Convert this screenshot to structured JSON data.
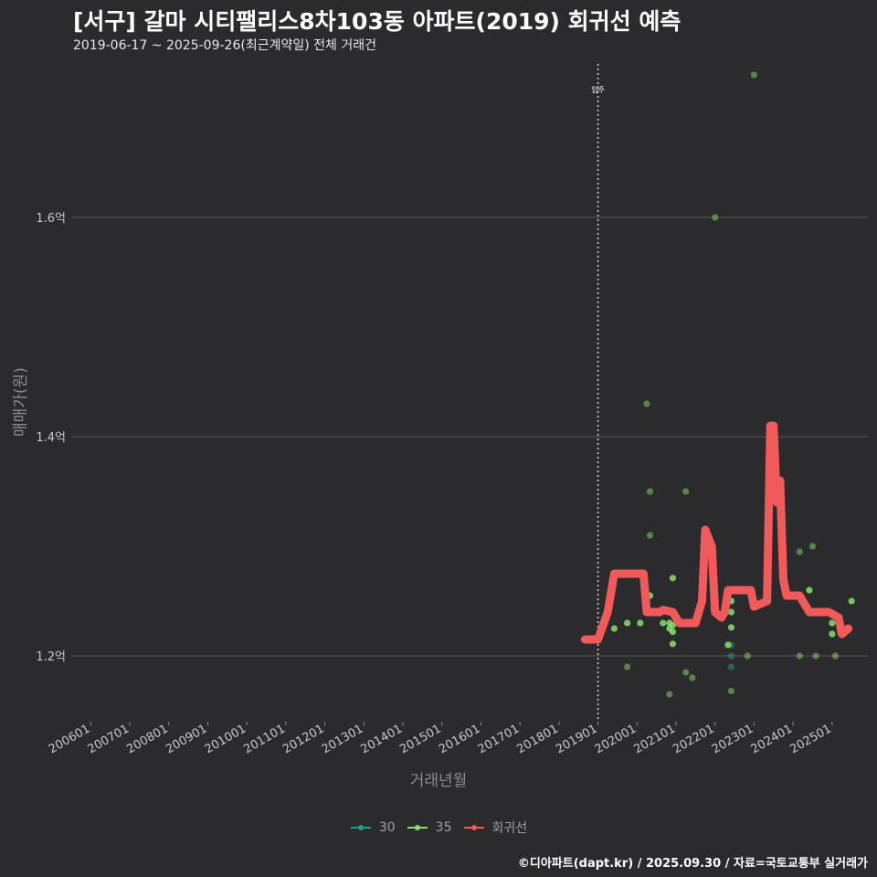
{
  "chart_data": {
    "type": "scatter",
    "title": "[서구] 갈마 시티팰리스8차103동 아파트(2019) 회귀선 예측",
    "subtitle": "2019-06-17 ~ 2025-09-26(최근계약일) 전체 거래건",
    "xlabel": "거래년월",
    "ylabel": "매매가(원)",
    "caption": "©디아파트(dapt.kr) / 2025.09.30 / 자료=국토교통부 실거래가",
    "x_ticks": [
      "200601",
      "200701",
      "200801",
      "200901",
      "201001",
      "201101",
      "201201",
      "201301",
      "201401",
      "201501",
      "201601",
      "201701",
      "201801",
      "201901",
      "202001",
      "202101",
      "202201",
      "202301",
      "202401",
      "202501"
    ],
    "y_ticks": [
      {
        "value": 1.2,
        "label": "1.2억"
      },
      {
        "value": 1.4,
        "label": "1.4억"
      },
      {
        "value": 1.6,
        "label": "1.6억"
      }
    ],
    "xlim": [
      "2005-07",
      "2025-12"
    ],
    "ylim": [
      1.14,
      1.74
    ],
    "grid": "horizontal",
    "legend_position": "bottom",
    "annotations": [
      {
        "x": "2019-01",
        "label": "입주"
      }
    ],
    "legend": [
      {
        "name": "30",
        "color": "#1fa187",
        "kind": "point-line"
      },
      {
        "name": "35",
        "color": "#86e068",
        "kind": "point-line"
      },
      {
        "name": "회귀선",
        "color": "#f05a5a",
        "kind": "point-line"
      }
    ],
    "series": [
      {
        "name": "30",
        "color": "#1fa187",
        "points": [
          {
            "x": "2022-06",
            "y": 1.19
          },
          {
            "x": "2022-06",
            "y": 1.2
          },
          {
            "x": "2022-06",
            "y": 1.21
          }
        ]
      },
      {
        "name": "35",
        "color": "#86e068",
        "points": [
          {
            "x": "2019-06",
            "y": 1.225
          },
          {
            "x": "2019-10",
            "y": 1.19
          },
          {
            "x": "2019-10",
            "y": 1.23
          },
          {
            "x": "2020-02",
            "y": 1.23
          },
          {
            "x": "2020-04",
            "y": 1.43
          },
          {
            "x": "2020-05",
            "y": 1.35
          },
          {
            "x": "2020-05",
            "y": 1.31
          },
          {
            "x": "2020-05",
            "y": 1.255
          },
          {
            "x": "2020-09",
            "y": 1.23
          },
          {
            "x": "2020-11",
            "y": 1.23
          },
          {
            "x": "2020-11",
            "y": 1.225
          },
          {
            "x": "2020-12",
            "y": 1.271
          },
          {
            "x": "2020-12",
            "y": 1.228
          },
          {
            "x": "2020-12",
            "y": 1.222
          },
          {
            "x": "2020-12",
            "y": 1.211
          },
          {
            "x": "2020-11",
            "y": 1.165
          },
          {
            "x": "2021-04",
            "y": 1.35
          },
          {
            "x": "2021-04",
            "y": 1.185
          },
          {
            "x": "2021-06",
            "y": 1.18
          },
          {
            "x": "2022-01",
            "y": 1.6
          },
          {
            "x": "2022-05",
            "y": 1.21
          },
          {
            "x": "2022-06",
            "y": 1.25
          },
          {
            "x": "2022-06",
            "y": 1.24
          },
          {
            "x": "2022-06",
            "y": 1.226
          },
          {
            "x": "2022-06",
            "y": 1.168
          },
          {
            "x": "2022-11",
            "y": 1.2
          },
          {
            "x": "2023-01",
            "y": 1.73
          },
          {
            "x": "2024-03",
            "y": 1.295
          },
          {
            "x": "2024-03",
            "y": 1.2
          },
          {
            "x": "2024-06",
            "y": 1.26
          },
          {
            "x": "2024-07",
            "y": 1.3
          },
          {
            "x": "2024-08",
            "y": 1.2
          },
          {
            "x": "2025-01",
            "y": 1.23
          },
          {
            "x": "2025-01",
            "y": 1.22
          },
          {
            "x": "2025-02",
            "y": 1.2
          },
          {
            "x": "2025-07",
            "y": 1.25
          }
        ]
      }
    ],
    "regression": {
      "name": "회귀선",
      "color": "#f05a5a",
      "points": [
        {
          "x": "2018-09",
          "y": 1.215
        },
        {
          "x": "2019-01",
          "y": 1.215
        },
        {
          "x": "2019-04",
          "y": 1.24
        },
        {
          "x": "2019-06",
          "y": 1.275
        },
        {
          "x": "2019-11",
          "y": 1.275
        },
        {
          "x": "2020-03",
          "y": 1.275
        },
        {
          "x": "2020-04",
          "y": 1.24
        },
        {
          "x": "2020-08",
          "y": 1.24
        },
        {
          "x": "2020-09",
          "y": 1.242
        },
        {
          "x": "2020-12",
          "y": 1.24
        },
        {
          "x": "2021-02",
          "y": 1.23
        },
        {
          "x": "2021-07",
          "y": 1.23
        },
        {
          "x": "2021-09",
          "y": 1.25
        },
        {
          "x": "2021-10",
          "y": 1.315
        },
        {
          "x": "2021-12",
          "y": 1.3
        },
        {
          "x": "2022-01",
          "y": 1.24
        },
        {
          "x": "2022-03",
          "y": 1.235
        },
        {
          "x": "2022-04",
          "y": 1.24
        },
        {
          "x": "2022-05",
          "y": 1.26
        },
        {
          "x": "2022-12",
          "y": 1.26
        },
        {
          "x": "2023-01",
          "y": 1.245
        },
        {
          "x": "2023-05",
          "y": 1.25
        },
        {
          "x": "2023-06",
          "y": 1.41
        },
        {
          "x": "2023-07",
          "y": 1.41
        },
        {
          "x": "2023-08",
          "y": 1.34
        },
        {
          "x": "2023-09",
          "y": 1.36
        },
        {
          "x": "2023-10",
          "y": 1.27
        },
        {
          "x": "2023-11",
          "y": 1.255
        },
        {
          "x": "2024-03",
          "y": 1.255
        },
        {
          "x": "2024-06",
          "y": 1.24
        },
        {
          "x": "2024-09",
          "y": 1.24
        },
        {
          "x": "2024-12",
          "y": 1.24
        },
        {
          "x": "2025-03",
          "y": 1.235
        },
        {
          "x": "2025-04",
          "y": 1.22
        },
        {
          "x": "2025-06",
          "y": 1.225
        }
      ]
    }
  }
}
